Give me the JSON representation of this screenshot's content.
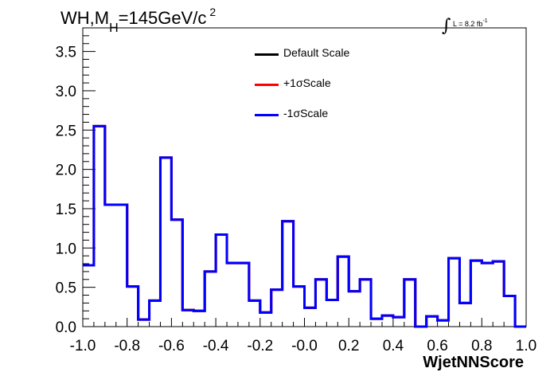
{
  "title": {
    "prefix": "WH,M",
    "subscript": "H",
    "middle": "=145GeV/c",
    "superscript": "2"
  },
  "luminosity": {
    "integral": "∫",
    "text": "L = 8.2 fb",
    "superscript": "-1"
  },
  "legend": [
    {
      "label": "Default Scale",
      "color": "#000000"
    },
    {
      "label": "+1σScale",
      "color": "#ff0000"
    },
    {
      "label": "-1σScale",
      "color": "#0000ff"
    }
  ],
  "chart_data": {
    "type": "line",
    "style": "histogram-step",
    "xlabel": "WjetNNScore",
    "ylabel": "",
    "xlim": [
      -1.0,
      1.0
    ],
    "ylim": [
      0,
      3.8
    ],
    "x_ticks": [
      -1.0,
      -0.8,
      -0.6,
      -0.4,
      -0.2,
      0.0,
      0.2,
      0.4,
      0.6,
      0.8,
      1.0
    ],
    "x_tick_labels": [
      "-1.0",
      "-0.8",
      "-0.6",
      "-0.4",
      "-0.2",
      "-0.0",
      "0.2",
      "0.4",
      "0.6",
      "0.8",
      "1.0"
    ],
    "y_ticks": [
      0.0,
      0.5,
      1.0,
      1.5,
      2.0,
      2.5,
      3.0,
      3.5
    ],
    "y_tick_labels": [
      "0.0",
      "0.5",
      "1.0",
      "1.5",
      "2.0",
      "2.5",
      "3.0",
      "3.5"
    ],
    "bin_edges": [
      -1.0,
      -0.95,
      -0.9,
      -0.85,
      -0.8,
      -0.75,
      -0.7,
      -0.65,
      -0.6,
      -0.55,
      -0.5,
      -0.45,
      -0.4,
      -0.35,
      -0.3,
      -0.25,
      -0.2,
      -0.15,
      -0.1,
      -0.05,
      0.0,
      0.05,
      0.1,
      0.15,
      0.2,
      0.25,
      0.3,
      0.35,
      0.4,
      0.45,
      0.5,
      0.55,
      0.6,
      0.65,
      0.7,
      0.75,
      0.8,
      0.85,
      0.9,
      0.95,
      1.0
    ],
    "series": [
      {
        "name": "Default Scale",
        "color": "#000000",
        "values": [
          0.78,
          2.55,
          1.55,
          1.55,
          0.51,
          0.09,
          0.33,
          2.15,
          1.36,
          0.21,
          0.2,
          0.7,
          1.17,
          0.81,
          0.81,
          0.33,
          0.18,
          0.47,
          1.34,
          0.51,
          0.24,
          0.6,
          0.34,
          0.89,
          0.45,
          0.6,
          0.1,
          0.14,
          0.12,
          0.6,
          0.0,
          0.13,
          0.08,
          0.87,
          0.3,
          0.84,
          0.81,
          0.83,
          0.39,
          0.0
        ]
      },
      {
        "name": "+1σScale",
        "color": "#ff0000",
        "values": [
          0.78,
          2.55,
          1.55,
          1.55,
          0.51,
          0.09,
          0.33,
          2.15,
          1.36,
          0.21,
          0.2,
          0.7,
          1.17,
          0.81,
          0.81,
          0.33,
          0.18,
          0.47,
          1.34,
          0.51,
          0.24,
          0.6,
          0.34,
          0.89,
          0.45,
          0.6,
          0.1,
          0.14,
          0.12,
          0.6,
          0.0,
          0.13,
          0.08,
          0.87,
          0.3,
          0.84,
          0.81,
          0.83,
          0.39,
          0.0
        ]
      },
      {
        "name": "-1σScale",
        "color": "#0000ff",
        "values": [
          0.78,
          2.55,
          1.55,
          1.55,
          0.51,
          0.09,
          0.33,
          2.15,
          1.36,
          0.21,
          0.2,
          0.7,
          1.17,
          0.81,
          0.81,
          0.33,
          0.18,
          0.47,
          1.34,
          0.51,
          0.24,
          0.6,
          0.34,
          0.89,
          0.45,
          0.6,
          0.1,
          0.14,
          0.12,
          0.6,
          0.0,
          0.13,
          0.08,
          0.87,
          0.3,
          0.84,
          0.81,
          0.83,
          0.39,
          0.0
        ]
      }
    ]
  }
}
